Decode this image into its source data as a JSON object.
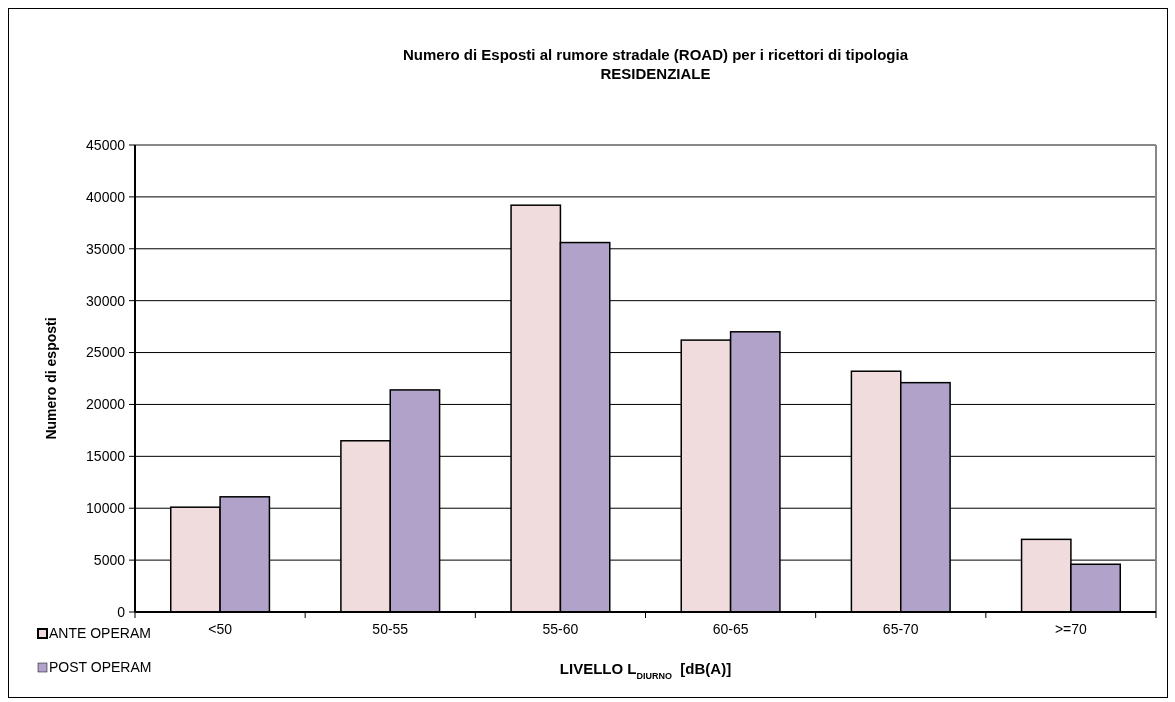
{
  "chart_data": {
    "type": "bar",
    "title": "Numero di Esposti al rumore stradale (ROAD) per i ricettori di tipologia",
    "subtitle": "RESIDENZIALE",
    "xlabel": "LIVELLO L$_{DIURNO}$  [dB(A)]",
    "ylabel": "Numero di esposti",
    "categories": [
      "<50",
      "50-55",
      "55-60",
      "60-65",
      "65-70",
      ">=70"
    ],
    "series": [
      {
        "name": "ANTE OPERAM",
        "color": "#f0dcdc",
        "values": [
          10100,
          16500,
          39200,
          26200,
          23200,
          7000
        ]
      },
      {
        "name": "POST OPERAM",
        "color": "#b0a2c8",
        "values": [
          11100,
          21400,
          35600,
          27000,
          22100,
          4600
        ]
      }
    ],
    "ylim": [
      0,
      45000
    ],
    "yticks": [
      0,
      5000,
      10000,
      15000,
      20000,
      25000,
      30000,
      35000,
      40000,
      45000
    ],
    "grid": "y",
    "legend": "bottom left"
  }
}
